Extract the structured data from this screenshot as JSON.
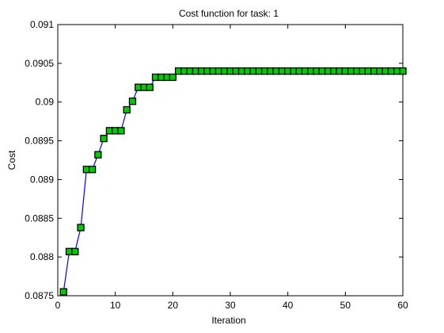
{
  "chart_data": {
    "type": "line",
    "title": "Cost function for task: 1",
    "xlabel": "Iteration",
    "ylabel": "Cost",
    "xlim": [
      0,
      60
    ],
    "ylim": [
      0.0875,
      0.091
    ],
    "xticks": [
      0,
      10,
      20,
      30,
      40,
      50,
      60
    ],
    "xtick_labels": [
      "0",
      "10",
      "20",
      "30",
      "40",
      "50",
      "60"
    ],
    "yticks": [
      0.0875,
      0.088,
      0.0885,
      0.089,
      0.0895,
      0.09,
      0.0905,
      0.091
    ],
    "ytick_labels": [
      "0.0875",
      "0.088",
      "0.0885",
      "0.089",
      "0.0895",
      "0.09",
      "0.0905",
      "0.091"
    ],
    "grid": false,
    "line_color": "#0000ff",
    "marker_color": "#00cc00",
    "marker_edge_color": "#000000",
    "marker": "square",
    "series": [
      {
        "x": [
          1,
          2,
          3,
          4,
          5,
          6,
          7,
          8,
          9,
          10,
          11,
          12,
          13,
          14,
          15,
          16,
          17,
          18,
          19,
          20,
          21,
          22,
          23,
          24,
          25,
          26,
          27,
          28,
          29,
          30,
          31,
          32,
          33,
          34,
          35,
          36,
          37,
          38,
          39,
          40,
          41,
          42,
          43,
          44,
          45,
          46,
          47,
          48,
          49,
          50,
          51,
          52,
          53,
          54,
          55,
          56,
          57,
          58,
          59,
          60
        ],
        "y": [
          0.08755,
          0.08807,
          0.08807,
          0.08838,
          0.08913,
          0.08913,
          0.08932,
          0.08953,
          0.08963,
          0.08963,
          0.08963,
          0.0899,
          0.09001,
          0.09019,
          0.09019,
          0.09019,
          0.09032,
          0.09032,
          0.09032,
          0.09032,
          0.0904,
          0.0904,
          0.0904,
          0.0904,
          0.0904,
          0.0904,
          0.0904,
          0.0904,
          0.0904,
          0.0904,
          0.0904,
          0.0904,
          0.0904,
          0.0904,
          0.0904,
          0.0904,
          0.0904,
          0.0904,
          0.0904,
          0.0904,
          0.0904,
          0.0904,
          0.0904,
          0.0904,
          0.0904,
          0.0904,
          0.0904,
          0.0904,
          0.0904,
          0.0904,
          0.0904,
          0.0904,
          0.0904,
          0.0904,
          0.0904,
          0.0904,
          0.0904,
          0.0904,
          0.0904,
          0.0904
        ]
      }
    ]
  }
}
